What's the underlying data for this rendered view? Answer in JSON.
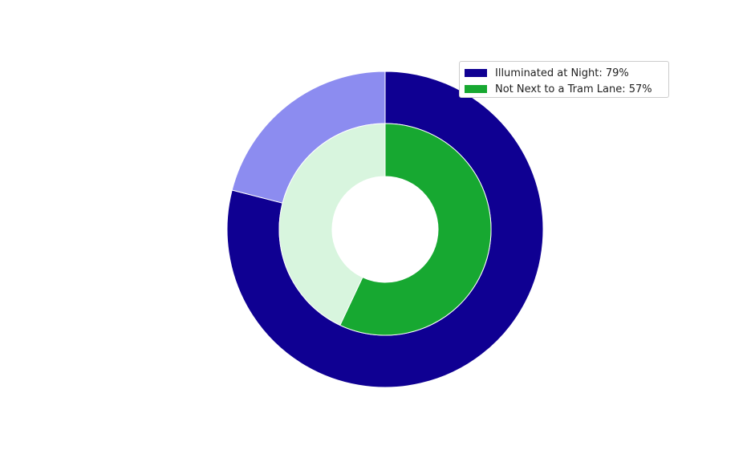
{
  "chart_data": {
    "type": "pie",
    "title": "",
    "series": [
      {
        "name": "Illuminated at Night: 79%",
        "ring": "outer",
        "values": [
          79,
          21
        ],
        "colors": [
          "#0f0092",
          "#8c8cf0"
        ]
      },
      {
        "name": "Not Next to a Tram Lane: 57%",
        "ring": "inner",
        "values": [
          57,
          43
        ],
        "colors": [
          "#17a831",
          "#d8f5de"
        ]
      }
    ],
    "legend": {
      "position": "top-right",
      "entries": [
        {
          "label": "Illuminated at Night: 79%",
          "color": "#0f0092"
        },
        {
          "label": "Not Next to a Tram Lane: 57%",
          "color": "#17a831"
        }
      ]
    }
  }
}
